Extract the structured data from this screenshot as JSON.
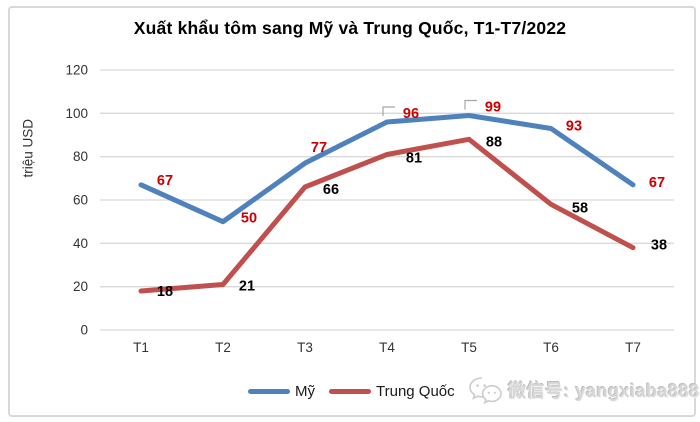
{
  "chart_data": {
    "type": "line",
    "title": "Xuất khẩu tôm sang Mỹ và Trung Quốc, T1-T7/2022",
    "ylabel": "triệu USD",
    "xlabel": "",
    "categories": [
      "T1",
      "T2",
      "T3",
      "T4",
      "T5",
      "T6",
      "T7"
    ],
    "series": [
      {
        "name": "Mỹ",
        "color": "#4F81BD",
        "label_color": "#CC0000",
        "values": [
          67,
          50,
          77,
          96,
          99,
          93,
          67
        ],
        "label_offsets": [
          [
            24,
            -5
          ],
          [
            26,
            -4
          ],
          [
            14,
            -16
          ],
          [
            24,
            -9
          ],
          [
            24,
            -9
          ],
          [
            23,
            -3
          ],
          [
            24,
            -3
          ]
        ],
        "leader_indexes": [
          3,
          4
        ]
      },
      {
        "name": "Trung Quốc",
        "color": "#C0504D",
        "label_color": "#000000",
        "values": [
          18,
          21,
          66,
          81,
          88,
          58,
          38
        ],
        "label_offsets": [
          [
            24,
            0
          ],
          [
            24,
            1
          ],
          [
            26,
            2
          ],
          [
            27,
            3
          ],
          [
            25,
            2
          ],
          [
            29,
            3
          ],
          [
            26,
            -3
          ]
        ],
        "leader_indexes": []
      }
    ],
    "yticks": [
      0,
      20,
      40,
      60,
      80,
      100,
      120
    ],
    "ylim": [
      0,
      120
    ],
    "grid": true,
    "legend_position": "bottom"
  },
  "watermark": {
    "icon": "wechat-icon",
    "label": "微信号: yangxiaba888"
  },
  "colors": {
    "gridline": "#D9D9D9",
    "axis_text": "#333333",
    "leader_line": "#A6A6A6",
    "frame_border": "#D9D9D9",
    "background": "#FFFFFF",
    "watermark_text": "#D6D6D6"
  }
}
